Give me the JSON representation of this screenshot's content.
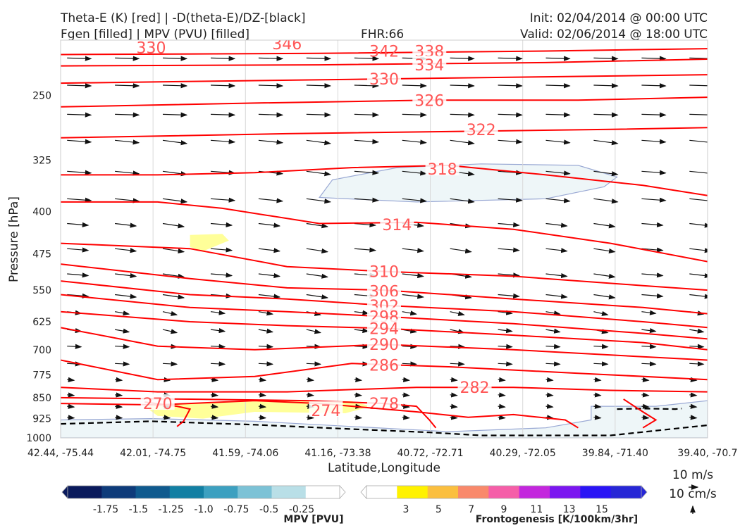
{
  "header": {
    "title_line1": "Theta-E (K) [red] | -D(theta-E)/DZ-[black]",
    "title_line2": "Fgen [filled] | MPV (PVU) [filled]",
    "fhr": "FHR:66",
    "init": "Init: 02/04/2014 @ 00:00 UTC",
    "valid": "Valid: 02/06/2014 @ 18:00 UTC"
  },
  "chart_data": {
    "type": "cross-section",
    "xlabel": "Latitude,Longitude",
    "ylabel": "Pressure [hPa]",
    "x_ticks": [
      "42.44, -75.44",
      "42.01, -74.75",
      "41.59, -74.06",
      "41.16, -73.38",
      "40.72, -72.71",
      "40.29, -72.05",
      "39.84, -71.40",
      "39.40, -70.7"
    ],
    "y_ticks": [
      250,
      325,
      400,
      475,
      550,
      625,
      700,
      775,
      850,
      925,
      1000
    ],
    "y_range": [
      1000,
      200
    ],
    "y_scale": "log",
    "theta_e_color": "#ff0000",
    "theta_e_contours": [
      {
        "label": "338",
        "p": [
          [
            0,
            212
          ],
          [
            40,
            211
          ],
          [
            75,
            209
          ],
          [
            100,
            207
          ]
        ],
        "lx": 57,
        "lp": 209
      },
      {
        "label": "334",
        "p": [
          [
            0,
            222
          ],
          [
            40,
            221
          ],
          [
            75,
            219
          ],
          [
            100,
            216
          ]
        ],
        "lx": 57,
        "lp": 221
      },
      {
        "label": "330",
        "p": [
          [
            0,
            238
          ],
          [
            25,
            236
          ],
          [
            50,
            234
          ],
          [
            75,
            232
          ],
          [
            100,
            230
          ]
        ],
        "lx": 50,
        "lp": 234
      },
      {
        "label": "326",
        "p": [
          [
            0,
            262
          ],
          [
            30,
            258
          ],
          [
            57,
            255
          ],
          [
            80,
            255
          ],
          [
            100,
            252
          ]
        ],
        "lx": 57,
        "lp": 255
      },
      {
        "label": "322",
        "p": [
          [
            0,
            297
          ],
          [
            35,
            292
          ],
          [
            65,
            289
          ],
          [
            85,
            287
          ],
          [
            100,
            285
          ]
        ],
        "lx": 65,
        "lp": 287
      },
      {
        "label": "318",
        "p": [
          [
            0,
            345
          ],
          [
            15,
            345
          ],
          [
            30,
            342
          ],
          [
            45,
            335
          ],
          [
            60,
            332
          ],
          [
            75,
            345
          ],
          [
            90,
            360
          ],
          [
            100,
            375
          ]
        ],
        "lx": 59,
        "lp": 337
      },
      {
        "label": "314",
        "p": [
          [
            0,
            385
          ],
          [
            15,
            385
          ],
          [
            25,
            395
          ],
          [
            40,
            420
          ],
          [
            55,
            418
          ],
          [
            70,
            430
          ],
          [
            85,
            455
          ],
          [
            100,
            490
          ]
        ],
        "lx": 52,
        "lp": 422
      },
      {
        "label": "310",
        "p": [
          [
            0,
            455
          ],
          [
            20,
            465
          ],
          [
            35,
            500
          ],
          [
            50,
            510
          ],
          [
            70,
            520
          ],
          [
            90,
            540
          ],
          [
            100,
            550
          ]
        ],
        "lx": 50,
        "lp": 510
      },
      {
        "label": "306",
        "p": [
          [
            0,
            495
          ],
          [
            20,
            525
          ],
          [
            35,
            545
          ],
          [
            50,
            550
          ],
          [
            70,
            570
          ],
          [
            90,
            590
          ],
          [
            100,
            605
          ]
        ],
        "lx": 50,
        "lp": 552
      },
      {
        "label": "302",
        "p": [
          [
            0,
            530
          ],
          [
            20,
            560
          ],
          [
            35,
            570
          ],
          [
            50,
            585
          ],
          [
            70,
            600
          ],
          [
            90,
            625
          ],
          [
            100,
            640
          ]
        ],
        "lx": 50,
        "lp": 585
      },
      {
        "label": "298",
        "p": [
          [
            0,
            560
          ],
          [
            20,
            590
          ],
          [
            35,
            600
          ],
          [
            50,
            612
          ],
          [
            70,
            630
          ],
          [
            90,
            655
          ],
          [
            100,
            670
          ]
        ],
        "lx": 50,
        "lp": 612
      },
      {
        "label": "294",
        "p": [
          [
            0,
            600
          ],
          [
            20,
            625
          ],
          [
            35,
            635
          ],
          [
            50,
            642
          ],
          [
            70,
            660
          ],
          [
            90,
            680
          ],
          [
            100,
            700
          ]
        ],
        "lx": 50,
        "lp": 642
      },
      {
        "label": "290",
        "p": [
          [
            0,
            640
          ],
          [
            15,
            690
          ],
          [
            30,
            700
          ],
          [
            50,
            685
          ],
          [
            70,
            700
          ],
          [
            90,
            720
          ],
          [
            100,
            730
          ]
        ],
        "lx": 50,
        "lp": 685
      },
      {
        "label": "286",
        "p": [
          [
            0,
            730
          ],
          [
            15,
            790
          ],
          [
            30,
            780
          ],
          [
            45,
            740
          ],
          [
            60,
            750
          ],
          [
            80,
            770
          ],
          [
            100,
            790
          ]
        ],
        "lx": 50,
        "lp": 745
      },
      {
        "label": "282",
        "p": [
          [
            0,
            815
          ],
          [
            15,
            830
          ],
          [
            35,
            830
          ],
          [
            55,
            815
          ],
          [
            70,
            815
          ],
          [
            85,
            825
          ],
          [
            100,
            830
          ]
        ],
        "lx": 64,
        "lp": 815
      },
      {
        "label": "278",
        "p": [
          [
            0,
            850
          ],
          [
            20,
            855
          ],
          [
            38,
            860
          ],
          [
            50,
            870
          ],
          [
            55,
            880
          ],
          [
            57,
            930
          ],
          [
            58,
            960
          ]
        ],
        "lx": 50,
        "lp": 870
      },
      {
        "label": "274",
        "p": [
          [
            0,
            870
          ],
          [
            15,
            875
          ],
          [
            30,
            860
          ],
          [
            40,
            870
          ],
          [
            55,
            900
          ],
          [
            63,
            920
          ],
          [
            70,
            910
          ],
          [
            78,
            930
          ],
          [
            80,
            960
          ]
        ],
        "lx": 41,
        "lp": 895
      },
      {
        "label": "270",
        "p": [
          [
            13,
            865
          ],
          [
            18,
            880
          ],
          [
            20,
            890
          ],
          [
            19,
            935
          ],
          [
            18,
            955
          ]
        ],
        "lx": 15,
        "lp": 870
      },
      {
        "label": "",
        "p": [
          [
            87,
            855
          ],
          [
            90,
            900
          ],
          [
            92,
            930
          ],
          [
            90,
            960
          ]
        ],
        "lx": -1,
        "lp": 0
      },
      {
        "label": "",
        "p": [
          [
            40,
            182
          ],
          [
            60,
            182
          ],
          [
            80,
            180
          ],
          [
            100,
            178
          ]
        ],
        "lx": -1,
        "lp": 0
      }
    ],
    "top_partial_labels": [
      "330",
      "346",
      "342"
    ],
    "stability_contour_color": "#000000",
    "stability_contour": [
      [
        0,
        945
      ],
      [
        14,
        935
      ],
      [
        30,
        948
      ],
      [
        45,
        965
      ],
      [
        57,
        978
      ],
      [
        65,
        990
      ],
      [
        85,
        990
      ],
      [
        100,
        950
      ]
    ],
    "stability_contour_right": [
      [
        86,
        890
      ],
      [
        90,
        888
      ],
      [
        95,
        890
      ],
      [
        96,
        888
      ]
    ],
    "mpv_region_label": "-0.25",
    "fgen_region_label": "3",
    "wind_reference": {
      "label1": "10 m/s",
      "label2": "10 cm/s"
    },
    "colorbar_mpv": {
      "label": "MPV [PVU]",
      "ticks": [
        "-1.75",
        "-1.5",
        "-1.25",
        "-1.0",
        "-0.75",
        "-0.5",
        "-0.25"
      ],
      "colors": [
        "#0a1a5c",
        "#0e3b7a",
        "#0f5a8e",
        "#127fa3",
        "#3ca0c0",
        "#7cc2d6",
        "#b9dfe7",
        "#ffffff"
      ]
    },
    "colorbar_fgen": {
      "label": "Frontogenesis [K/100km/3hr]",
      "ticks": [
        "3",
        "5",
        "7",
        "9",
        "11",
        "13",
        "15"
      ],
      "colors": [
        "#ffffff",
        "#fff200",
        "#fbbf3f",
        "#f9896b",
        "#f55ea8",
        "#c327dd",
        "#7b16f0",
        "#2a14f5",
        "#2727d6"
      ]
    }
  }
}
